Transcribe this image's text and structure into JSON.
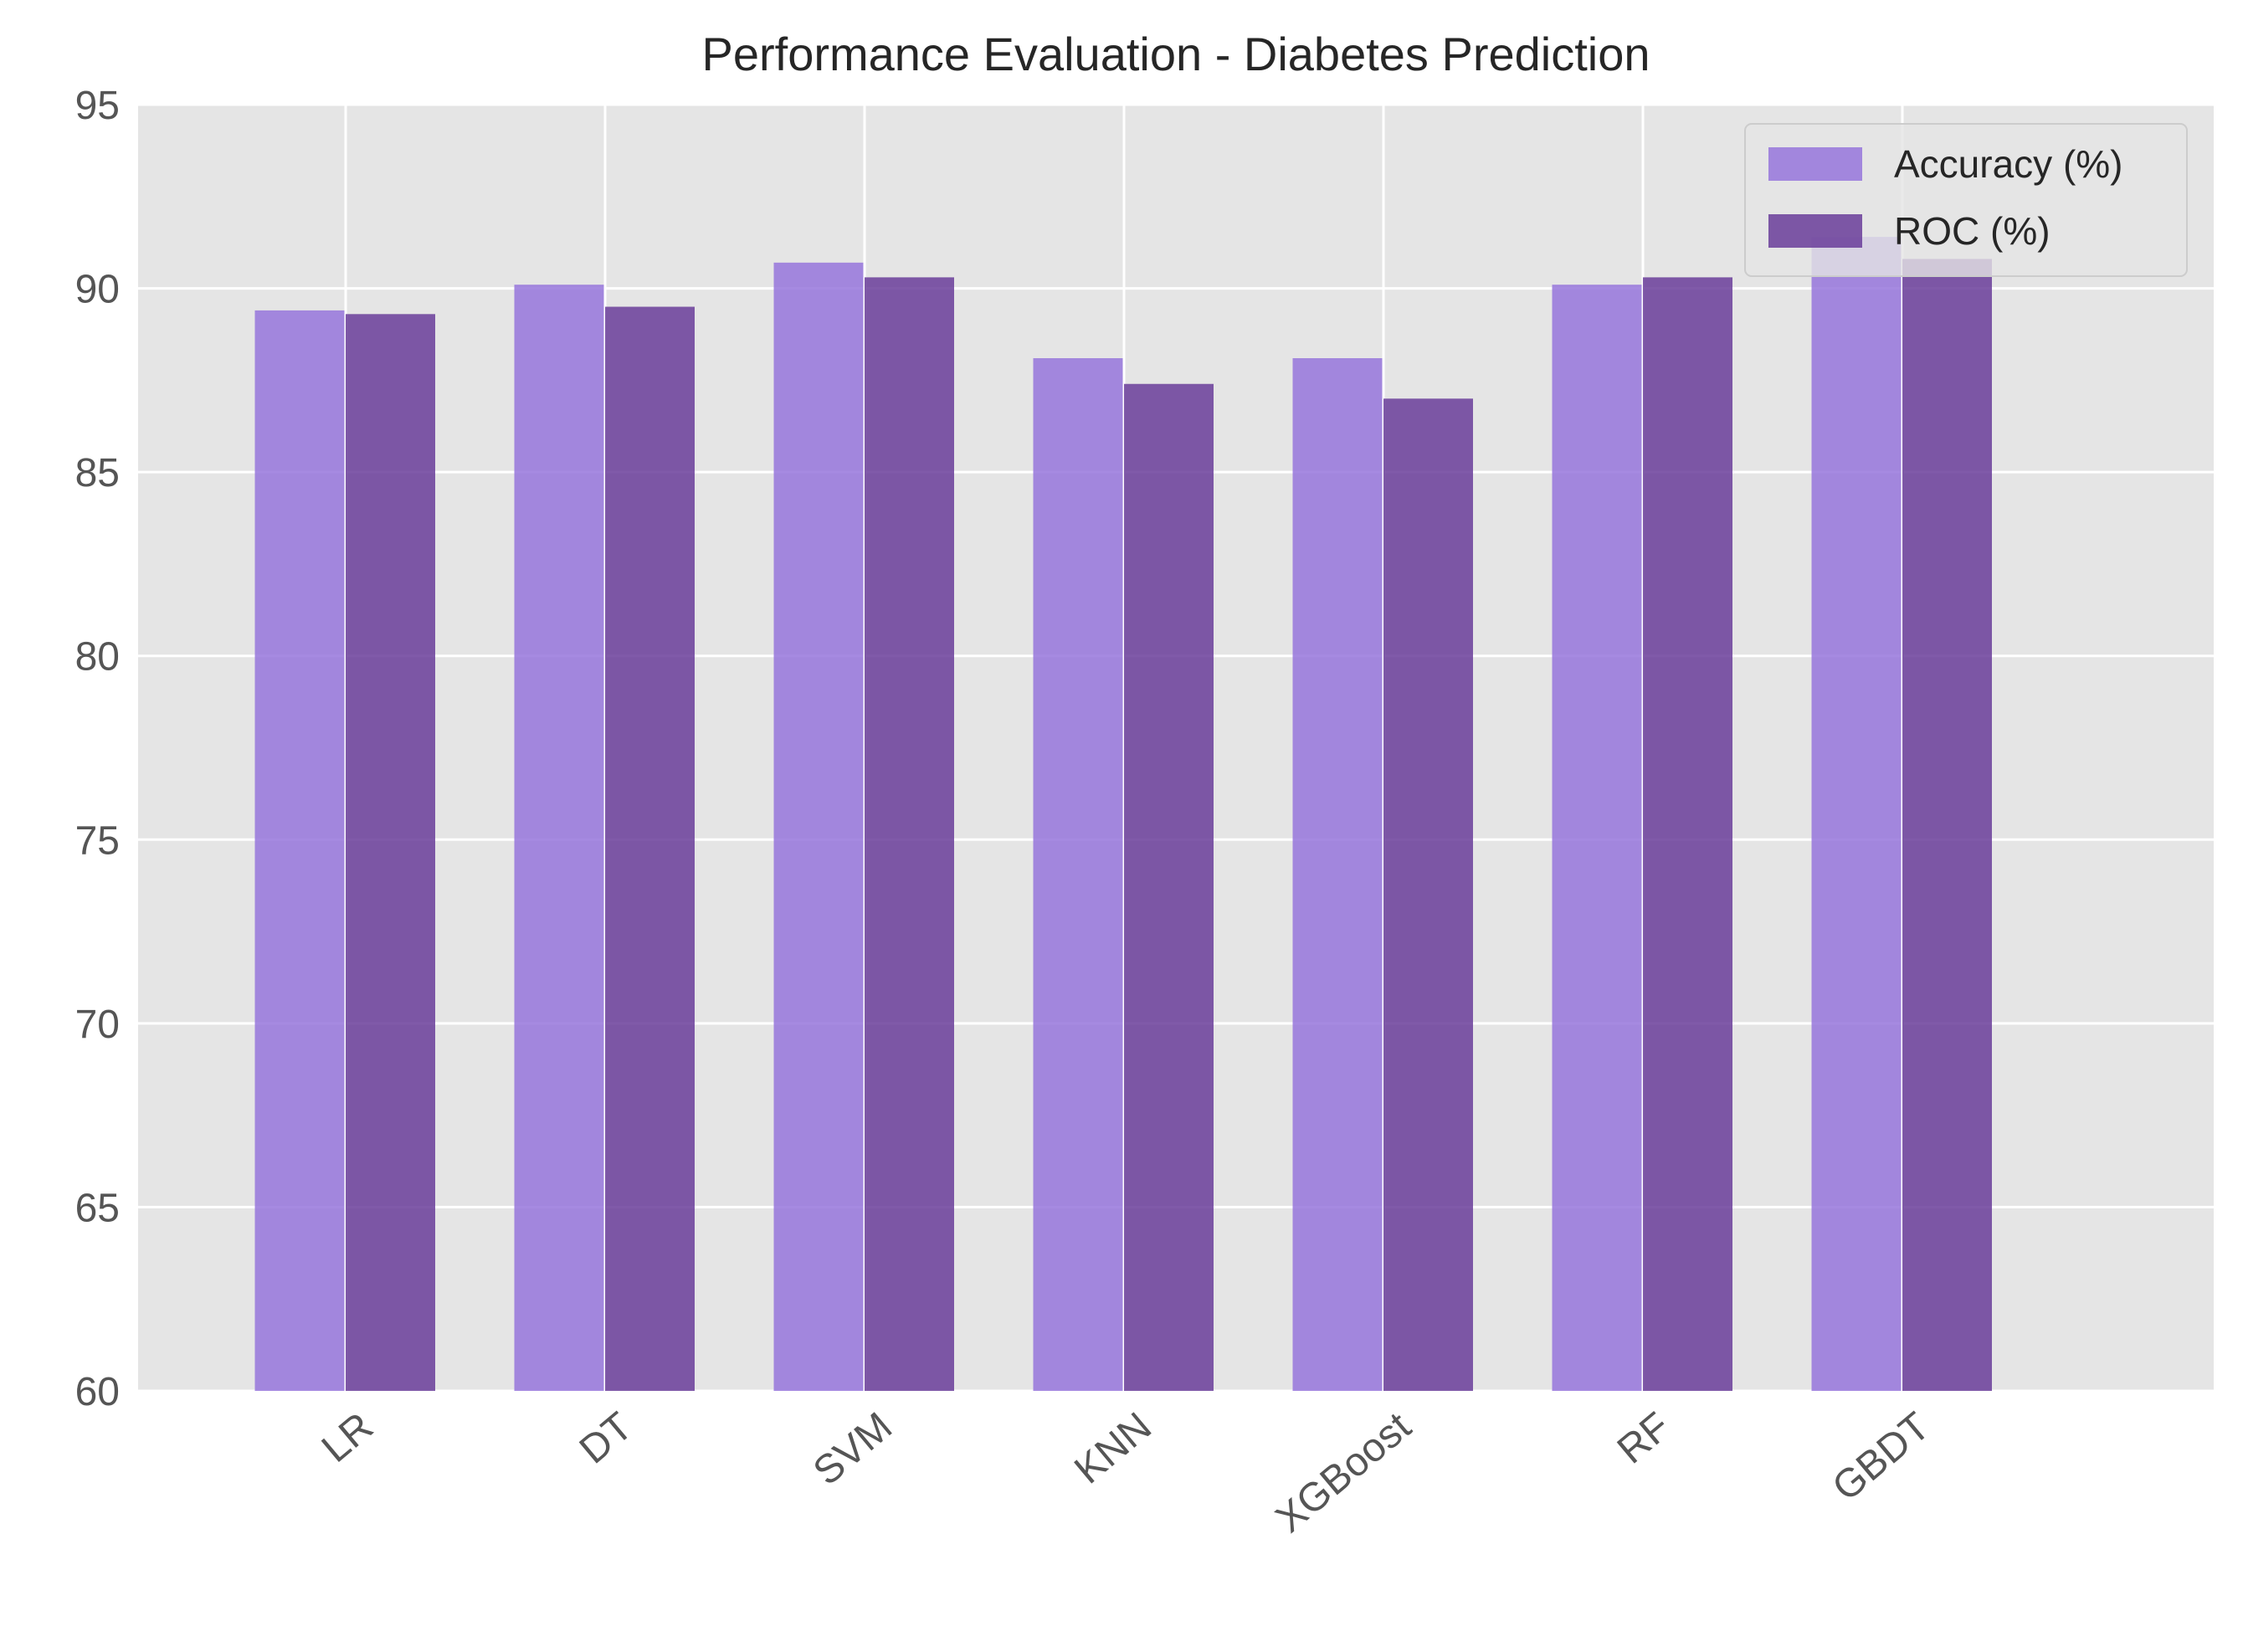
{
  "chart_data": {
    "type": "bar",
    "title": "Performance Evaluation - Diabetes Prediction",
    "xlabel": "",
    "ylabel": "",
    "categories": [
      "LR",
      "DT",
      "SVM",
      "KNN",
      "XGBoost",
      "RF",
      "GBDT"
    ],
    "series": [
      {
        "name": "Accuracy (%)",
        "color": "#9370db",
        "values": [
          89.4,
          90.1,
          90.7,
          88.1,
          88.1,
          90.1,
          91.4
        ]
      },
      {
        "name": "ROC (%)",
        "color": "#6a3d9a",
        "values": [
          89.3,
          89.5,
          90.3,
          87.4,
          87.0,
          90.3,
          90.8
        ]
      }
    ],
    "ylim": [
      60,
      95
    ],
    "yticks": [
      "60",
      "65",
      "70",
      "75",
      "80",
      "85",
      "90",
      "95"
    ],
    "grid": true,
    "legend_position": "top-right",
    "background": "#e5e5e5"
  }
}
